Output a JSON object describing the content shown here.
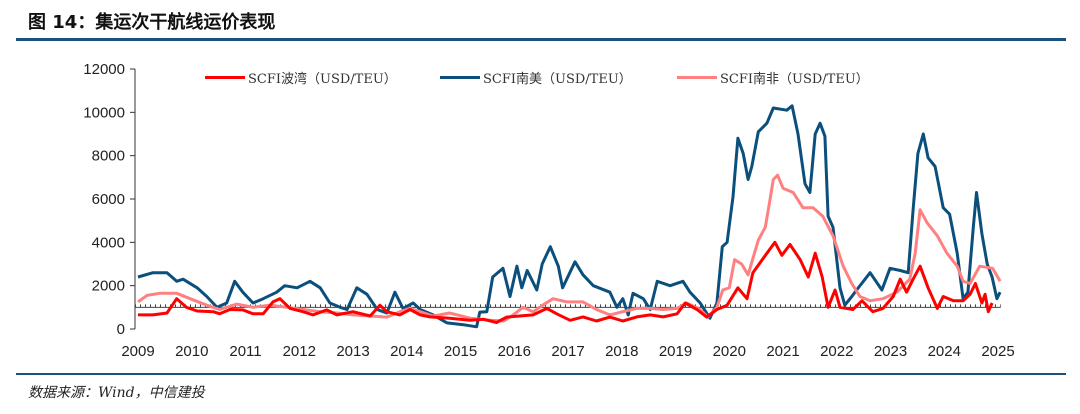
{
  "header": {
    "title": "图 14：集运次干航线运价表现"
  },
  "footer": {
    "source": "数据来源：Wind，中信建投"
  },
  "chart_data": {
    "type": "line",
    "title": "集运次干航线运价表现",
    "xlabel": "",
    "ylabel": "",
    "xlim": [
      2009,
      2025.05
    ],
    "ylim": [
      0,
      12000
    ],
    "x_ticks": [
      "2009",
      "2010",
      "2011",
      "2012",
      "2013",
      "2014",
      "2015",
      "2016",
      "2017",
      "2018",
      "2019",
      "2020",
      "2021",
      "2022",
      "2023",
      "2024",
      "2025"
    ],
    "y_ticks": [
      "0",
      "2000",
      "4000",
      "6000",
      "8000",
      "10000",
      "12000"
    ],
    "reference_line": 1000,
    "legend_position": "top",
    "series": [
      {
        "name": "SCFI波湾（USD/TEU）",
        "color": "#ff0000",
        "points": [
          [
            2009.0,
            650
          ],
          [
            2009.28,
            650
          ],
          [
            2009.54,
            740
          ],
          [
            2009.72,
            1400
          ],
          [
            2009.9,
            1000
          ],
          [
            2010.1,
            830
          ],
          [
            2010.4,
            800
          ],
          [
            2010.52,
            700
          ],
          [
            2010.71,
            900
          ],
          [
            2010.95,
            880
          ],
          [
            2011.14,
            700
          ],
          [
            2011.33,
            700
          ],
          [
            2011.51,
            1250
          ],
          [
            2011.64,
            1400
          ],
          [
            2011.83,
            950
          ],
          [
            2012.07,
            800
          ],
          [
            2012.26,
            650
          ],
          [
            2012.51,
            880
          ],
          [
            2012.7,
            650
          ],
          [
            2013.0,
            800
          ],
          [
            2013.32,
            600
          ],
          [
            2013.5,
            1100
          ],
          [
            2013.63,
            800
          ],
          [
            2013.87,
            650
          ],
          [
            2014.06,
            900
          ],
          [
            2014.25,
            650
          ],
          [
            2014.43,
            560
          ],
          [
            2014.8,
            500
          ],
          [
            2015.18,
            400
          ],
          [
            2015.43,
            450
          ],
          [
            2015.67,
            300
          ],
          [
            2015.86,
            550
          ],
          [
            2016.1,
            600
          ],
          [
            2016.35,
            650
          ],
          [
            2016.61,
            950
          ],
          [
            2016.79,
            700
          ],
          [
            2017.04,
            400
          ],
          [
            2017.28,
            560
          ],
          [
            2017.53,
            370
          ],
          [
            2017.78,
            550
          ],
          [
            2018.02,
            370
          ],
          [
            2018.28,
            560
          ],
          [
            2018.53,
            650
          ],
          [
            2018.77,
            560
          ],
          [
            2019.03,
            700
          ],
          [
            2019.18,
            1200
          ],
          [
            2019.4,
            900
          ],
          [
            2019.58,
            550
          ],
          [
            2019.77,
            900
          ],
          [
            2019.96,
            1100
          ],
          [
            2020.16,
            1900
          ],
          [
            2020.33,
            1400
          ],
          [
            2020.44,
            2600
          ],
          [
            2020.7,
            3500
          ],
          [
            2020.85,
            4000
          ],
          [
            2020.98,
            3400
          ],
          [
            2021.13,
            3900
          ],
          [
            2021.32,
            3200
          ],
          [
            2021.47,
            2400
          ],
          [
            2021.6,
            3500
          ],
          [
            2021.73,
            2400
          ],
          [
            2021.84,
            1000
          ],
          [
            2021.97,
            1800
          ],
          [
            2022.06,
            1000
          ],
          [
            2022.3,
            900
          ],
          [
            2022.47,
            1300
          ],
          [
            2022.67,
            800
          ],
          [
            2022.86,
            950
          ],
          [
            2023.05,
            1500
          ],
          [
            2023.18,
            2300
          ],
          [
            2023.3,
            1700
          ],
          [
            2023.42,
            2300
          ],
          [
            2023.55,
            2900
          ],
          [
            2023.7,
            1900
          ],
          [
            2023.87,
            950
          ],
          [
            2023.98,
            1500
          ],
          [
            2024.17,
            1300
          ],
          [
            2024.35,
            1300
          ],
          [
            2024.48,
            1600
          ],
          [
            2024.58,
            2100
          ],
          [
            2024.7,
            1200
          ],
          [
            2024.76,
            1600
          ],
          [
            2024.82,
            800
          ],
          [
            2024.89,
            1200
          ]
        ]
      },
      {
        "name": "SCFI南美（USD/TEU）",
        "color": "#0b4f7c",
        "points": [
          [
            2009.0,
            2400
          ],
          [
            2009.28,
            2600
          ],
          [
            2009.54,
            2600
          ],
          [
            2009.72,
            2200
          ],
          [
            2009.84,
            2300
          ],
          [
            2010.1,
            1900
          ],
          [
            2010.28,
            1500
          ],
          [
            2010.47,
            1000
          ],
          [
            2010.65,
            1200
          ],
          [
            2010.8,
            2200
          ],
          [
            2010.95,
            1700
          ],
          [
            2011.14,
            1200
          ],
          [
            2011.33,
            1400
          ],
          [
            2011.58,
            1700
          ],
          [
            2011.73,
            2000
          ],
          [
            2011.96,
            1900
          ],
          [
            2012.2,
            2200
          ],
          [
            2012.39,
            1900
          ],
          [
            2012.57,
            1200
          ],
          [
            2012.76,
            1000
          ],
          [
            2012.89,
            900
          ],
          [
            2013.07,
            1900
          ],
          [
            2013.26,
            1600
          ],
          [
            2013.45,
            900
          ],
          [
            2013.63,
            740
          ],
          [
            2013.78,
            1700
          ],
          [
            2013.93,
            950
          ],
          [
            2014.12,
            1200
          ],
          [
            2014.25,
            900
          ],
          [
            2014.49,
            650
          ],
          [
            2014.75,
            280
          ],
          [
            2015.05,
            200
          ],
          [
            2015.3,
            100
          ],
          [
            2015.36,
            780
          ],
          [
            2015.49,
            800
          ],
          [
            2015.6,
            2400
          ],
          [
            2015.79,
            2800
          ],
          [
            2015.92,
            1500
          ],
          [
            2016.05,
            2900
          ],
          [
            2016.14,
            1900
          ],
          [
            2016.24,
            2700
          ],
          [
            2016.42,
            1800
          ],
          [
            2016.52,
            3000
          ],
          [
            2016.67,
            3800
          ],
          [
            2016.82,
            2900
          ],
          [
            2016.9,
            1900
          ],
          [
            2017.13,
            3100
          ],
          [
            2017.28,
            2500
          ],
          [
            2017.47,
            2000
          ],
          [
            2017.78,
            1700
          ],
          [
            2017.91,
            1000
          ],
          [
            2018.02,
            1400
          ],
          [
            2018.12,
            650
          ],
          [
            2018.21,
            1650
          ],
          [
            2018.4,
            1400
          ],
          [
            2018.53,
            900
          ],
          [
            2018.66,
            2200
          ],
          [
            2018.9,
            2000
          ],
          [
            2019.14,
            2200
          ],
          [
            2019.27,
            1700
          ],
          [
            2019.46,
            1200
          ],
          [
            2019.64,
            500
          ],
          [
            2019.77,
            1200
          ],
          [
            2019.87,
            3800
          ],
          [
            2019.96,
            4000
          ],
          [
            2020.07,
            6100
          ],
          [
            2020.16,
            8800
          ],
          [
            2020.26,
            8100
          ],
          [
            2020.35,
            6900
          ],
          [
            2020.42,
            7500
          ],
          [
            2020.54,
            9100
          ],
          [
            2020.7,
            9500
          ],
          [
            2020.82,
            10200
          ],
          [
            2021.07,
            10100
          ],
          [
            2021.17,
            10300
          ],
          [
            2021.28,
            9000
          ],
          [
            2021.41,
            6700
          ],
          [
            2021.5,
            6300
          ],
          [
            2021.6,
            9000
          ],
          [
            2021.69,
            9500
          ],
          [
            2021.78,
            8900
          ],
          [
            2021.84,
            5200
          ],
          [
            2021.93,
            4700
          ],
          [
            2022.06,
            1900
          ],
          [
            2022.15,
            1100
          ],
          [
            2022.28,
            1500
          ],
          [
            2022.37,
            1800
          ],
          [
            2022.62,
            2600
          ],
          [
            2022.84,
            1800
          ],
          [
            2022.99,
            2800
          ],
          [
            2023.18,
            2700
          ],
          [
            2023.33,
            2600
          ],
          [
            2023.42,
            5500
          ],
          [
            2023.51,
            8100
          ],
          [
            2023.61,
            9000
          ],
          [
            2023.7,
            7900
          ],
          [
            2023.83,
            7500
          ],
          [
            2023.98,
            5600
          ],
          [
            2024.1,
            5300
          ],
          [
            2024.24,
            3500
          ],
          [
            2024.35,
            1400
          ],
          [
            2024.44,
            1700
          ],
          [
            2024.54,
            4700
          ],
          [
            2024.6,
            6300
          ],
          [
            2024.7,
            4400
          ],
          [
            2024.8,
            3000
          ],
          [
            2024.89,
            2400
          ],
          [
            2024.98,
            1400
          ],
          [
            2025.04,
            1700
          ]
        ]
      },
      {
        "name": "SCFI南非（USD/TEU）",
        "color": "#ff8080",
        "points": [
          [
            2009.0,
            1250
          ],
          [
            2009.17,
            1550
          ],
          [
            2009.4,
            1650
          ],
          [
            2009.72,
            1650
          ],
          [
            2009.97,
            1400
          ],
          [
            2010.28,
            1100
          ],
          [
            2010.52,
            900
          ],
          [
            2010.84,
            1150
          ],
          [
            2011.14,
            1000
          ],
          [
            2011.45,
            1100
          ],
          [
            2011.77,
            1000
          ],
          [
            2012.07,
            900
          ],
          [
            2012.39,
            800
          ],
          [
            2012.7,
            740
          ],
          [
            2013.0,
            650
          ],
          [
            2013.32,
            600
          ],
          [
            2013.63,
            550
          ],
          [
            2013.87,
            800
          ],
          [
            2014.06,
            950
          ],
          [
            2014.25,
            800
          ],
          [
            2014.49,
            600
          ],
          [
            2014.8,
            740
          ],
          [
            2015.18,
            500
          ],
          [
            2015.55,
            400
          ],
          [
            2015.8,
            370
          ],
          [
            2015.98,
            650
          ],
          [
            2016.16,
            1000
          ],
          [
            2016.35,
            800
          ],
          [
            2016.53,
            1100
          ],
          [
            2016.72,
            1400
          ],
          [
            2016.98,
            1250
          ],
          [
            2017.28,
            1250
          ],
          [
            2017.53,
            900
          ],
          [
            2017.78,
            650
          ],
          [
            2018.02,
            800
          ],
          [
            2018.28,
            950
          ],
          [
            2018.53,
            950
          ],
          [
            2018.77,
            900
          ],
          [
            2019.03,
            950
          ],
          [
            2019.21,
            1200
          ],
          [
            2019.46,
            900
          ],
          [
            2019.6,
            550
          ],
          [
            2019.77,
            1000
          ],
          [
            2019.88,
            1800
          ],
          [
            2020.0,
            1900
          ],
          [
            2020.1,
            3200
          ],
          [
            2020.23,
            3000
          ],
          [
            2020.35,
            2500
          ],
          [
            2020.54,
            4100
          ],
          [
            2020.67,
            4700
          ],
          [
            2020.76,
            6000
          ],
          [
            2020.82,
            6900
          ],
          [
            2020.9,
            7100
          ],
          [
            2021.0,
            6500
          ],
          [
            2021.19,
            6300
          ],
          [
            2021.37,
            5600
          ],
          [
            2021.56,
            5600
          ],
          [
            2021.74,
            5200
          ],
          [
            2021.93,
            4300
          ],
          [
            2022.12,
            2900
          ],
          [
            2022.28,
            2100
          ],
          [
            2022.43,
            1500
          ],
          [
            2022.62,
            1300
          ],
          [
            2022.86,
            1400
          ],
          [
            2023.12,
            1700
          ],
          [
            2023.36,
            2300
          ],
          [
            2023.46,
            3500
          ],
          [
            2023.55,
            5500
          ],
          [
            2023.68,
            4900
          ],
          [
            2023.87,
            4300
          ],
          [
            2024.05,
            3500
          ],
          [
            2024.24,
            2900
          ],
          [
            2024.35,
            2200
          ],
          [
            2024.48,
            2100
          ],
          [
            2024.66,
            2900
          ],
          [
            2024.9,
            2800
          ],
          [
            2025.04,
            2200
          ]
        ]
      }
    ]
  }
}
